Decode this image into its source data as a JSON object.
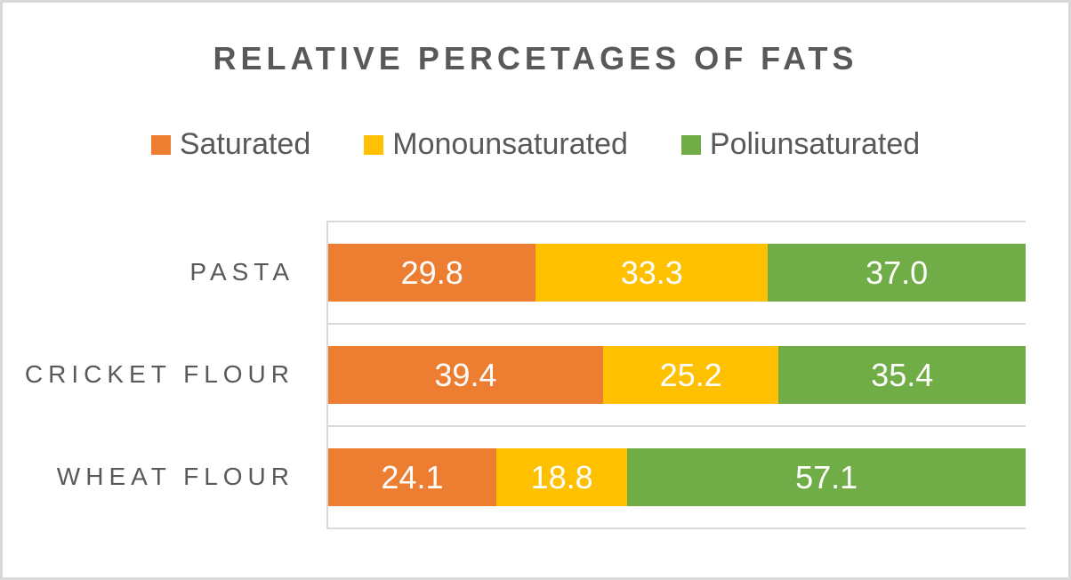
{
  "window": {
    "background": "#FFFFFF",
    "frame_border_color": "#D9D9D9"
  },
  "title": "RELATIVE PERCETAGES OF FATS",
  "title_color": "#595959",
  "legend": {
    "items": [
      {
        "label": "Saturated",
        "color": "#ED7D31"
      },
      {
        "label": "Monounsaturated",
        "color": "#FFC000"
      },
      {
        "label": "Poliunsaturated",
        "color": "#70AD47"
      }
    ]
  },
  "chart_data": {
    "type": "bar",
    "subtype": "stacked-horizontal",
    "title": "RELATIVE PERCETAGES OF FATS",
    "categories": [
      "PASTA",
      "CRICKET FLOUR",
      "WHEAT FLOUR"
    ],
    "series": [
      {
        "name": "Saturated",
        "color": "#ED7D31",
        "values": [
          29.8,
          39.4,
          24.1
        ]
      },
      {
        "name": "Monounsaturated",
        "color": "#FFC000",
        "values": [
          33.3,
          25.2,
          18.8
        ]
      },
      {
        "name": "Poliunsaturated",
        "color": "#70AD47",
        "values": [
          37.0,
          35.4,
          57.1
        ]
      }
    ],
    "data_labels": [
      [
        "29.8",
        "33.3",
        "37.0"
      ],
      [
        "39.4",
        "25.2",
        "35.4"
      ],
      [
        "24.1",
        "18.8",
        "57.1"
      ]
    ],
    "data_label_color": "#FFFFFF",
    "xlim": [
      0,
      100
    ],
    "x_axis_tick_labels": "none",
    "grid": "row-separator-lines-only",
    "gridline_color": "#D9D9D9",
    "axis_line_color": "#D9D9D9",
    "category_text_color": "#595959",
    "legend_position": "top"
  }
}
